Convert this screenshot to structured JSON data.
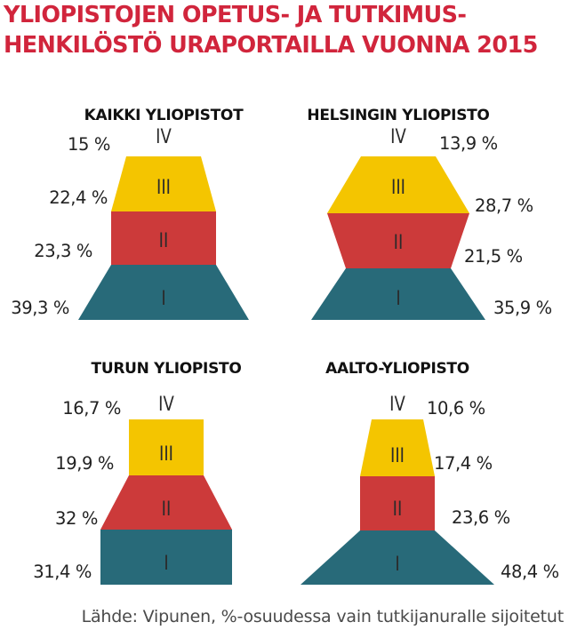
{
  "title_lines": [
    "YLIOPISTOJEN OPETUS- JA TUTKIMUS-",
    "HENKILÖSTÖ URAPORTAILLA VUONNA 2015"
  ],
  "source": "Lähde: Vipunen, %-osuudessa vain tutkijanuralle sijoitetut",
  "colors": {
    "title": "#d1253c",
    "I": "#286a79",
    "II": "#cc3a3a",
    "III": "#f4c500",
    "IV": "#f4c500"
  },
  "chart_data": [
    {
      "type": "pyramid",
      "title": "KAIKKI YLIOPISTOT",
      "categories": [
        "I",
        "II",
        "III",
        "IV"
      ],
      "values": [
        39.3,
        23.3,
        22.4,
        15
      ],
      "labels": [
        "39,3 %",
        "23,3 %",
        "22,4 %",
        "15 %"
      ]
    },
    {
      "type": "pyramid",
      "title": "HELSINGIN YLIOPISTO",
      "categories": [
        "I",
        "II",
        "III",
        "IV"
      ],
      "values": [
        35.9,
        21.5,
        28.7,
        13.9
      ],
      "labels": [
        "35,9 %",
        "21,5 %",
        "28,7 %",
        "13,9 %"
      ]
    },
    {
      "type": "pyramid",
      "title": "TURUN YLIOPISTO",
      "categories": [
        "I",
        "II",
        "III",
        "IV"
      ],
      "values": [
        31.4,
        32,
        19.9,
        16.7
      ],
      "labels": [
        "31,4 %",
        "32 %",
        "19,9 %",
        "16,7 %"
      ]
    },
    {
      "type": "pyramid",
      "title": "AALTO-YLIOPISTO",
      "categories": [
        "I",
        "II",
        "III",
        "IV"
      ],
      "values": [
        48.4,
        23.6,
        17.4,
        10.6
      ],
      "labels": [
        "48,4 %",
        "23,6 %",
        "17,4 %",
        "10,6 %"
      ]
    }
  ]
}
